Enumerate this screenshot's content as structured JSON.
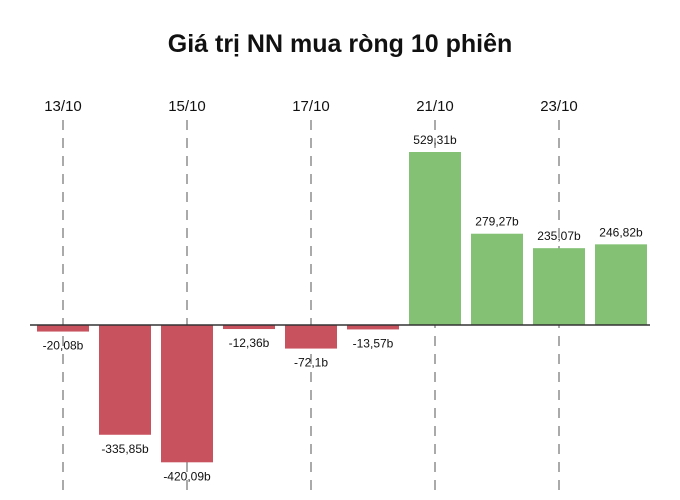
{
  "chart_data": {
    "type": "bar",
    "title": "Giá trị NN mua ròng 10 phiên",
    "x_tick_labels": [
      "13/10",
      "15/10",
      "17/10",
      "21/10",
      "23/10"
    ],
    "x_tick_bar_index": [
      0,
      2,
      4,
      6,
      8
    ],
    "values": [
      -20.08,
      -335.85,
      -420.09,
      -12.36,
      -72.1,
      -13.57,
      529.31,
      279.27,
      235.07,
      246.82
    ],
    "value_labels": [
      "-20,08b",
      "-335,85b",
      "-420,09b",
      "-12,36b",
      "-72,1b",
      "-13,57b",
      "529,31b",
      "279,27b",
      "235,07b",
      "246,82b"
    ],
    "colors": {
      "negative": "#c9525f",
      "positive": "#84c174",
      "axis": "#333333",
      "grid": "#555555"
    },
    "grid": "vertical-dashed-at-ticks",
    "legend": "none"
  }
}
